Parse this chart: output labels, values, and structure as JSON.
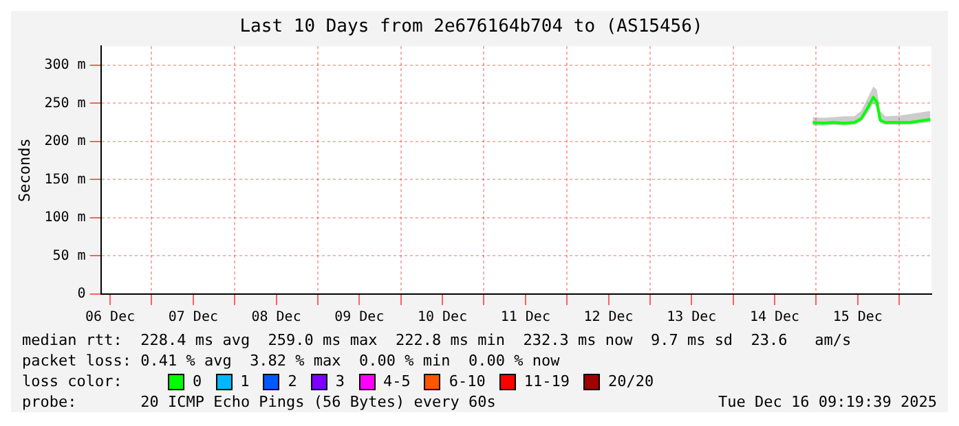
{
  "chart_data": {
    "type": "line",
    "title": "Last 10 Days from 2e676164b704 to (AS15456)",
    "ylabel": "Seconds",
    "xlim": [
      "2025-12-06T09:19",
      "2025-12-16T09:19"
    ],
    "xticks": [
      {
        "value": "2025-12-06T12:00",
        "label": "06 Dec"
      },
      {
        "value": "2025-12-07T00:00",
        "label": null
      },
      {
        "value": "2025-12-07T12:00",
        "label": "07 Dec"
      },
      {
        "value": "2025-12-08T00:00",
        "label": null
      },
      {
        "value": "2025-12-08T12:00",
        "label": "08 Dec"
      },
      {
        "value": "2025-12-09T00:00",
        "label": null
      },
      {
        "value": "2025-12-09T12:00",
        "label": "09 Dec"
      },
      {
        "value": "2025-12-10T00:00",
        "label": null
      },
      {
        "value": "2025-12-10T12:00",
        "label": "10 Dec"
      },
      {
        "value": "2025-12-11T00:00",
        "label": null
      },
      {
        "value": "2025-12-11T12:00",
        "label": "11 Dec"
      },
      {
        "value": "2025-12-12T00:00",
        "label": null
      },
      {
        "value": "2025-12-12T12:00",
        "label": "12 Dec"
      },
      {
        "value": "2025-12-13T00:00",
        "label": null
      },
      {
        "value": "2025-12-13T12:00",
        "label": "13 Dec"
      },
      {
        "value": "2025-12-14T00:00",
        "label": null
      },
      {
        "value": "2025-12-14T12:00",
        "label": "14 Dec"
      },
      {
        "value": "2025-12-15T00:00",
        "label": null
      },
      {
        "value": "2025-12-15T12:00",
        "label": "15 Dec"
      },
      {
        "value": "2025-12-16T00:00",
        "label": null
      }
    ],
    "ylim": [
      0,
      325
    ],
    "yticks": [
      0,
      {
        "value": 50,
        "label": "50 m"
      },
      {
        "value": 100,
        "label": "100 m"
      },
      {
        "value": 150,
        "label": "150 m"
      },
      {
        "value": 200,
        "label": "200 m"
      },
      {
        "value": 250,
        "label": "250 m"
      },
      {
        "value": 300,
        "label": "300 m"
      }
    ],
    "grid": true,
    "legend": "bottom",
    "legend_title": "loss color:",
    "marker": "none",
    "line_style": "solid",
    "series": [
      {
        "name": "0",
        "color": "#00ff00",
        "x": [
          "2025-12-14T23:00",
          "2025-12-15T02:00",
          "2025-12-15T05:00",
          "2025-12-15T08:00",
          "2025-12-15T11:00",
          "2025-12-15T13:00",
          "2025-12-15T15:00",
          "2025-12-15T16:30",
          "2025-12-15T17:30",
          "2025-12-15T18:30",
          "2025-12-15T20:00",
          "2025-12-16T00:00",
          "2025-12-16T03:00",
          "2025-12-16T06:00",
          "2025-12-16T09:00"
        ],
        "values": [
          225,
          224,
          225,
          224,
          225,
          230,
          245,
          258,
          252,
          228,
          225,
          225,
          225,
          227,
          229
        ],
        "lower": [
          221,
          221,
          222,
          221,
          222,
          226,
          238,
          250,
          245,
          224,
          222,
          222,
          222,
          224,
          225
        ],
        "upper": [
          232,
          231,
          232,
          233,
          233,
          240,
          258,
          272,
          268,
          240,
          233,
          234,
          236,
          238,
          240
        ]
      },
      {
        "name": "1",
        "color": "#00b8ff"
      },
      {
        "name": "2",
        "color": "#0059ff"
      },
      {
        "name": "3",
        "color": "#7e00ff"
      },
      {
        "name": "4-5",
        "color": "#ff00ff"
      },
      {
        "name": "6-10",
        "color": "#ff5500"
      },
      {
        "name": "11-19",
        "color": "#ff0000"
      },
      {
        "name": "20/20",
        "color": "#a10000"
      }
    ],
    "annotations": [
      "median rtt:  228.4 ms avg  259.0 ms max  222.8 ms min  232.3 ms now  9.7 ms sd  23.6   am/s",
      "packet loss: 0.41 % avg  3.82 % max  0.00 % min  0.00 % now",
      "probe:       20 ICMP Echo Pings (56 Bytes) every 60s",
      "Tue Dec 16 09:19:39 2025"
    ]
  }
}
